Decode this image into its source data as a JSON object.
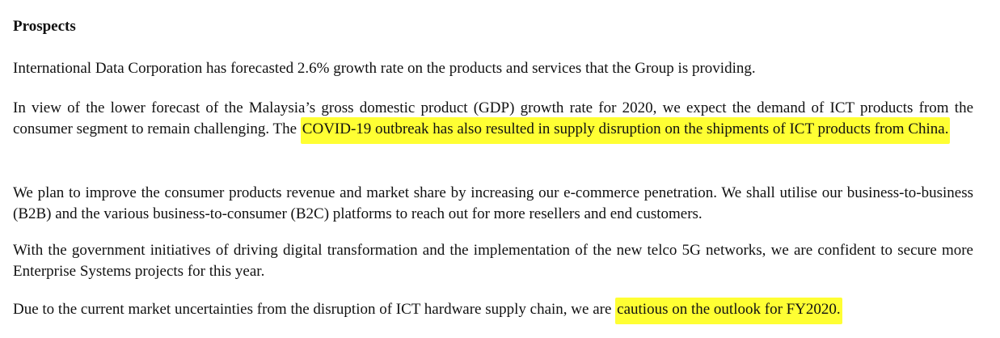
{
  "heading": "Prospects",
  "paragraphs": {
    "p1": "International Data Corporation has forecasted 2.6% growth rate on the products and services that the Group is providing.",
    "p2_before": "In view of the lower forecast of the Malaysia’s gross domestic product (GDP) growth rate for 2020, we expect the demand of ICT products from the consumer segment to remain challenging. The ",
    "p2_highlight": "COVID-19 outbreak has also resulted in supply disruption on the shipments of ICT products from China.",
    "p3": "We plan to improve the consumer products revenue and market share by increasing our e-commerce penetration. We shall utilise our business-to-business (B2B) and the various business-to-consumer (B2C) platforms to reach out for more resellers and end customers.",
    "p4": "With the government initiatives of driving digital transformation and the implementation of the new telco 5G networks, we are confident to secure more Enterprise Systems projects for this year.",
    "p5_before": "Due to the current market uncertainties from the disruption of ICT hardware supply chain, we are ",
    "p5_highlight": "cautious on the outlook for FY2020."
  },
  "colors": {
    "highlight": "#ffff33",
    "text": "#111111",
    "background": "#ffffff"
  }
}
